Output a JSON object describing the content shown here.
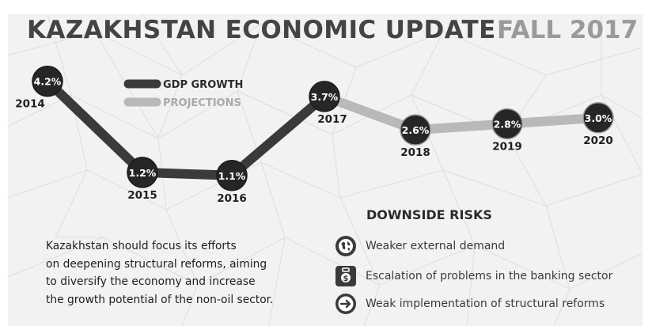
{
  "header": {
    "title": "KAZAKHSTAN ECONOMIC UPDATE",
    "subtitle": "FALL 2017"
  },
  "chart_data": {
    "type": "line",
    "x": [
      "2014",
      "2015",
      "2016",
      "2017",
      "2018",
      "2019",
      "2020"
    ],
    "series": [
      {
        "name": "GDP GROWTH",
        "x": [
          "2014",
          "2015",
          "2016",
          "2017"
        ],
        "values": [
          4.2,
          1.2,
          1.1,
          3.7
        ],
        "data_labels": [
          "4.2%",
          "1.2%",
          "1.1%",
          "3.7%"
        ]
      },
      {
        "name": "PROJECTIONS",
        "x": [
          "2017",
          "2018",
          "2019",
          "2020"
        ],
        "values": [
          3.7,
          2.6,
          2.8,
          3.0
        ],
        "data_labels": [
          "3.7%",
          "2.6%",
          "2.8%",
          "3.0%"
        ]
      }
    ],
    "legend": {
      "placement": "top-left"
    },
    "colors": {
      "gdp_growth": "#3a3a3a",
      "projections": "#b9b9b9",
      "marker_fill": "#262626",
      "marker_text": "#ffffff"
    }
  },
  "downside_risks": {
    "title": "DOWNSIDE RISKS",
    "items": [
      {
        "icon": "globe-icon",
        "label": "Weaker external demand"
      },
      {
        "icon": "money-briefcase-icon",
        "label": "Escalation of problems in the banking sector"
      },
      {
        "icon": "arrow-right-icon",
        "label": "Weak implementation of structural reforms"
      }
    ]
  },
  "body_text": {
    "lines": [
      "Kazakhstan should focus its efforts",
      "on deepening structural reforms, aiming",
      "to diversify the economy and increase",
      "the growth potential of the non-oil sector."
    ]
  }
}
